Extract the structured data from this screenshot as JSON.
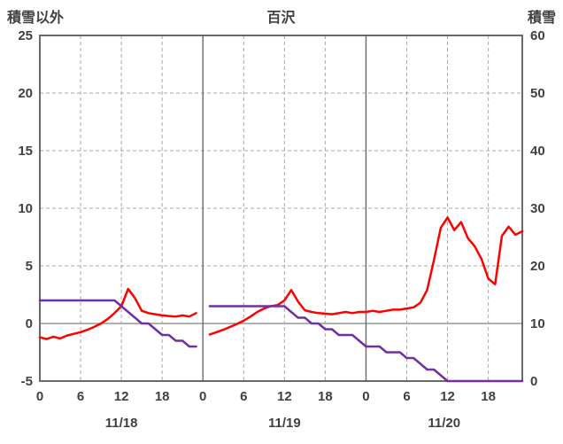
{
  "chart_data": {
    "type": "line",
    "title": "百沢",
    "left_axis": {
      "label": "積雪以外",
      "min": -5,
      "max": 25,
      "ticks": [
        25,
        20,
        15,
        10,
        5,
        0,
        -5
      ]
    },
    "right_axis": {
      "label": "積雪",
      "min": 0,
      "max": 60,
      "ticks": [
        60,
        50,
        40,
        30,
        20,
        10,
        0
      ]
    },
    "x_axis": {
      "days": [
        "11/18",
        "11/19",
        "11/20"
      ],
      "hour_ticks": [
        0,
        6,
        12,
        18
      ]
    },
    "legend": "none",
    "grid": {
      "horizontal_dashed": [
        20,
        15,
        10,
        5
      ],
      "zero_line": 0,
      "day_boundary_lines": true
    },
    "series": [
      {
        "name": "積雪以外",
        "name_en": "red",
        "axis": "left",
        "color": "#ff0000",
        "values": [
          -1.2,
          -1.35,
          -1.15,
          -1.3,
          -1.05,
          -0.9,
          -0.75,
          -0.55,
          -0.3,
          0.0,
          0.4,
          0.9,
          1.5,
          3.0,
          2.2,
          1.1,
          0.9,
          0.8,
          0.7,
          0.65,
          0.6,
          0.7,
          0.6,
          0.9,
          null,
          -0.95,
          -0.75,
          -0.55,
          -0.3,
          -0.05,
          0.25,
          0.6,
          1.0,
          1.3,
          1.5,
          1.6,
          2.0,
          2.9,
          1.9,
          1.15,
          1.0,
          0.9,
          0.85,
          0.8,
          0.9,
          1.0,
          0.9,
          1.0,
          1.0,
          1.1,
          1.0,
          1.1,
          1.2,
          1.2,
          1.3,
          1.4,
          1.8,
          2.9,
          5.5,
          8.3,
          9.2,
          8.1,
          8.8,
          7.4,
          6.7,
          5.6,
          3.9,
          3.4,
          7.6,
          8.4,
          7.7,
          8.0
        ]
      },
      {
        "name": "積雪",
        "name_en": "purple",
        "axis": "right",
        "color": "#7030a0",
        "values": [
          14,
          14,
          14,
          14,
          14,
          14,
          14,
          14,
          14,
          14,
          14,
          14,
          13,
          12,
          11,
          10,
          10,
          9,
          8,
          8,
          7,
          7,
          6,
          6,
          null,
          13,
          13,
          13,
          13,
          13,
          13,
          13,
          13,
          13,
          13,
          13,
          13,
          12,
          11,
          11,
          10,
          10,
          9,
          9,
          8,
          8,
          8,
          7,
          6,
          6,
          6,
          5,
          5,
          5,
          4,
          4,
          3,
          2,
          2,
          1,
          0,
          0,
          0,
          0,
          0,
          0,
          0,
          0,
          0,
          0,
          0,
          0
        ]
      }
    ]
  }
}
